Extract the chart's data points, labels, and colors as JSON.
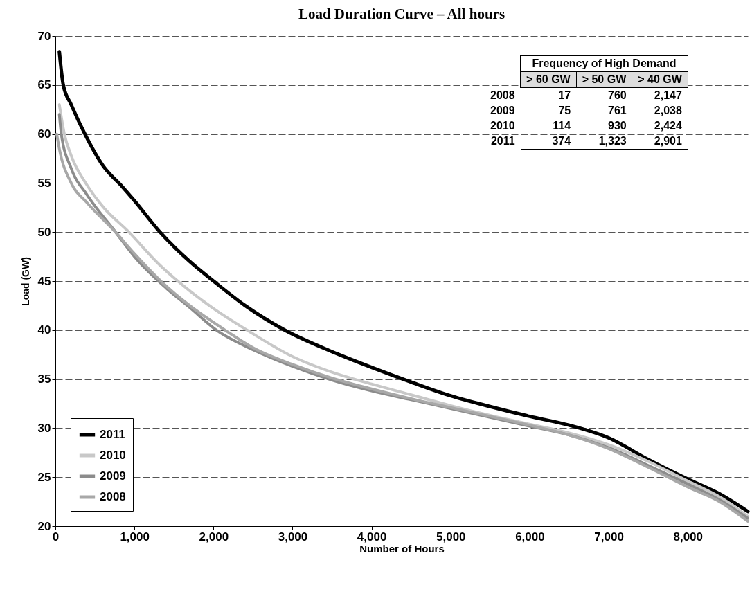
{
  "chart_data": {
    "type": "line",
    "title": "Load Duration Curve – All hours",
    "xlabel": "Number of Hours",
    "ylabel": "Load (GW)",
    "xlim": [
      0,
      8760
    ],
    "xticks": [
      0,
      {
        "value": 1000,
        "label": "1,000"
      },
      {
        "value": 2000,
        "label": "2,000"
      },
      {
        "value": 3000,
        "label": "3,000"
      },
      {
        "value": 4000,
        "label": "4,000"
      },
      {
        "value": 5000,
        "label": "5,000"
      },
      {
        "value": 6000,
        "label": "6,000"
      },
      {
        "value": 7000,
        "label": "7,000"
      },
      {
        "value": 8000,
        "label": "8,000"
      }
    ],
    "ylim": [
      20,
      70
    ],
    "yticks": [
      20,
      25,
      30,
      35,
      40,
      45,
      50,
      55,
      60,
      65,
      70
    ],
    "grid": "y",
    "legend": "bottom left",
    "marker": "none",
    "line_style": "solid",
    "series": [
      {
        "name": "2011",
        "color": "#000000",
        "x": [
          50,
          100,
          200,
          374,
          600,
          850,
          1000,
          1323,
          1700,
          2000,
          2400,
          2901,
          3500,
          4000,
          4500,
          5000,
          5500,
          6000,
          6500,
          7000,
          7500,
          8000,
          8400,
          8760
        ],
        "values": [
          68.4,
          65,
          63,
          60,
          56.8,
          54.6,
          53.2,
          50,
          47,
          45,
          42.5,
          40,
          37.8,
          36.2,
          34.7,
          33.3,
          32.2,
          31.2,
          30.3,
          29,
          26.8,
          24.8,
          23.3,
          21.5
        ]
      },
      {
        "name": "2010",
        "color": "#c8c8c8",
        "x": [
          50,
          114,
          200,
          400,
          600,
          930,
          1300,
          1700,
          2000,
          2424,
          3000,
          3500,
          4000,
          4500,
          5000,
          5500,
          6000,
          6500,
          7000,
          7500,
          8000,
          8400,
          8760
        ],
        "values": [
          63,
          60,
          57.8,
          54.8,
          52.6,
          50,
          46.8,
          44,
          42.2,
          40,
          37.3,
          35.7,
          34.5,
          33.4,
          32.3,
          31.3,
          30.4,
          29.5,
          28.3,
          26.6,
          24.6,
          23,
          21
        ]
      },
      {
        "name": "2009",
        "color": "#8c8c8c",
        "x": [
          50,
          75,
          200,
          400,
          761,
          1000,
          1400,
          1700,
          2038,
          2500,
          3000,
          3500,
          4000,
          4500,
          5000,
          5500,
          6000,
          6500,
          7000,
          7500,
          8000,
          8400,
          8760
        ],
        "values": [
          62,
          60,
          56.5,
          53.8,
          50,
          47.5,
          44.3,
          42.3,
          40,
          38,
          36.3,
          34.9,
          33.8,
          32.9,
          32,
          31.1,
          30.2,
          29.3,
          28,
          26.2,
          24.3,
          22.7,
          20.8
        ]
      },
      {
        "name": "2008",
        "color": "#a8a8a8",
        "x": [
          17,
          50,
          200,
          400,
          760,
          1000,
          1400,
          1700,
          2147,
          2500,
          3000,
          3500,
          4000,
          4500,
          5000,
          5500,
          6000,
          6500,
          7000,
          7500,
          8000,
          8400,
          8760
        ],
        "values": [
          60,
          58.5,
          55,
          53,
          50,
          47.8,
          44.5,
          42.5,
          40,
          38.2,
          36.5,
          35.1,
          34,
          33,
          32.1,
          31.2,
          30.3,
          29.3,
          27.9,
          26,
          24,
          22.5,
          20.5
        ]
      }
    ],
    "annotations": [
      "Frequency of High Demand",
      "> 60 GW",
      "> 50 GW",
      "> 40 GW",
      "2008",
      "17",
      "760",
      "2,147",
      "2009",
      "75",
      "761",
      "2,038",
      "2010",
      "114",
      "930",
      "2,424",
      "2011",
      "374",
      "1,323",
      "2,901"
    ]
  }
}
